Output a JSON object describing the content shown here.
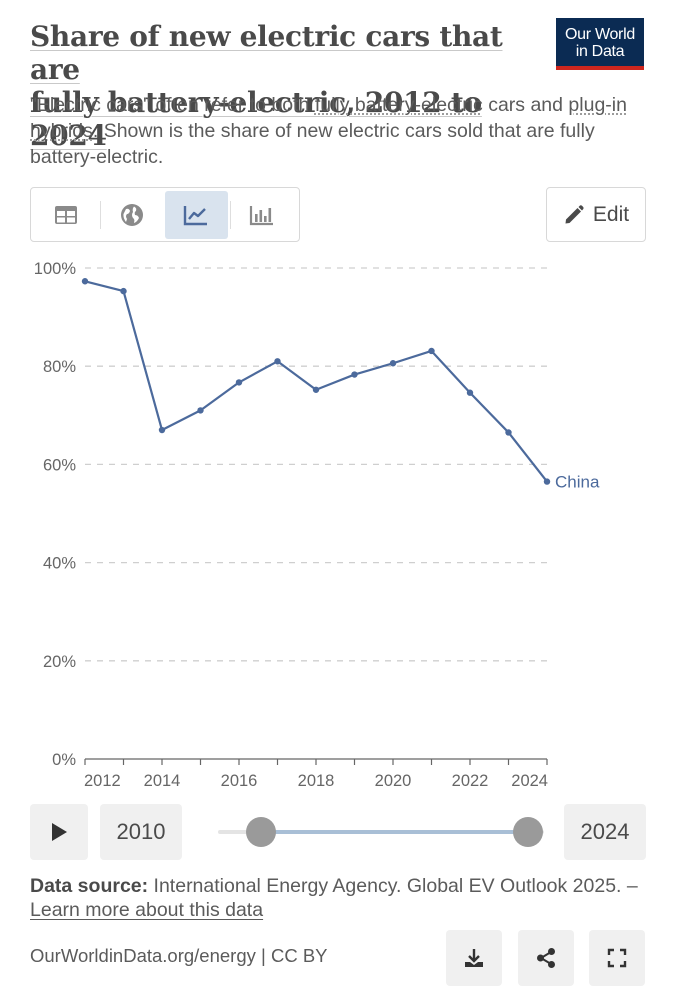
{
  "title": {
    "line1": "Share of new electric cars that are",
    "line2": "fully battery-electric, 2012 to 2024"
  },
  "logo": {
    "line1": "Our World",
    "line2": "in Data"
  },
  "subtitle": {
    "part1": "\"Electric cars\" often refer to both ",
    "link1": "fully battery-electric",
    "part2": " cars and ",
    "link2": "plug-in hybrids",
    "part3": ". Shown is the share of new electric cars sold that are fully battery-electric."
  },
  "tabs": [
    {
      "name": "table-icon",
      "active": false
    },
    {
      "name": "globe-icon",
      "active": false
    },
    {
      "name": "line-chart-icon",
      "active": true
    },
    {
      "name": "bar-chart-icon",
      "active": false
    }
  ],
  "edit_label": "Edit",
  "colors": {
    "series": "#4c6a9c",
    "grid": "#cfcfcf",
    "axis": "#666666",
    "brand": "#0b2b53",
    "accent": "#ce261e"
  },
  "chart_data": {
    "type": "line",
    "x": [
      2012,
      2013,
      2014,
      2015,
      2016,
      2017,
      2018,
      2019,
      2020,
      2021,
      2022,
      2023,
      2024
    ],
    "series": [
      {
        "name": "China",
        "values": [
          97.3,
          95.3,
          67.0,
          71.0,
          76.7,
          81.0,
          75.2,
          78.3,
          80.6,
          83.1,
          74.6,
          66.5,
          56.5
        ]
      }
    ],
    "yticks": [
      "0%",
      "20%",
      "40%",
      "60%",
      "80%",
      "100%"
    ],
    "ytick_values": [
      0,
      20,
      40,
      60,
      80,
      100
    ],
    "xticks": [
      "2012",
      "2014",
      "2016",
      "2018",
      "2020",
      "2022",
      "2024"
    ],
    "xtick_values": [
      2012,
      2014,
      2016,
      2018,
      2020,
      2022,
      2024
    ],
    "ylim": [
      0,
      100
    ],
    "xlim": [
      2012,
      2024
    ],
    "grid": true,
    "legend": "inline-end-label"
  },
  "timeline": {
    "start_year": "2010",
    "end_year": "2024"
  },
  "source": {
    "label": "Data source:",
    "text": " International Energy Agency. Global EV Outlook 2025. – ",
    "link": "Learn more about this data"
  },
  "footer": {
    "url": "OurWorldinData.org/energy | CC BY"
  }
}
